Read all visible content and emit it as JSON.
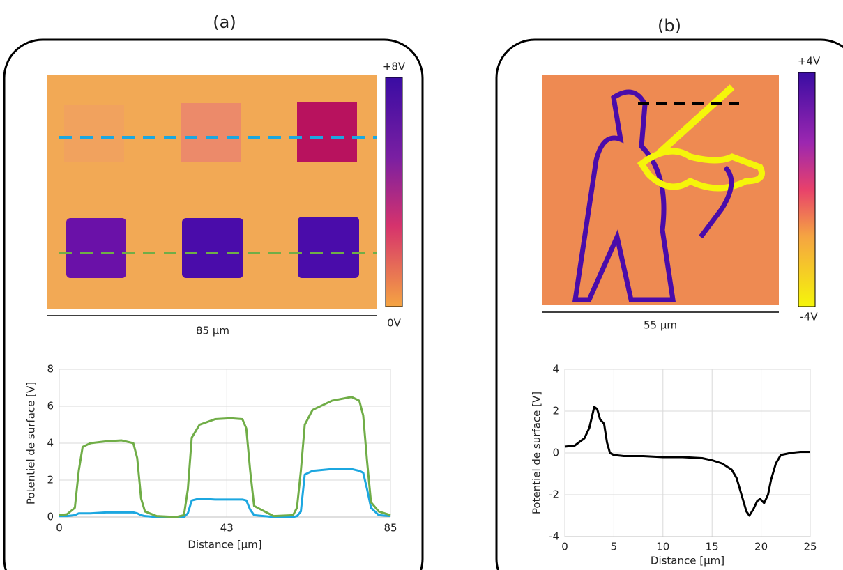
{
  "chart_data": [
    {
      "type": "line",
      "panel_label": "(a)",
      "colorbar_labels": [
        "+8V",
        "0V"
      ],
      "scale_bar": "85 µm",
      "ylabel": "Potentiel de surface [V]",
      "xlabel": "Distance [µm]",
      "xlim": [
        0,
        85
      ],
      "xticks": [
        0,
        43,
        85
      ],
      "ylim": [
        0,
        8
      ],
      "yticks": [
        0,
        2,
        4,
        6,
        8
      ],
      "grid": true,
      "x": [
        0,
        2,
        4,
        5,
        6,
        8,
        12,
        16,
        19,
        20,
        21,
        22,
        25,
        30,
        32,
        33,
        34,
        36,
        40,
        44,
        47,
        48,
        49,
        50,
        55,
        60,
        61,
        62,
        63,
        65,
        70,
        75,
        77,
        78,
        79,
        80,
        82,
        85
      ],
      "series": [
        {
          "color": "#1ca7e0",
          "values": [
            0.05,
            0.05,
            0.1,
            0.2,
            0.2,
            0.2,
            0.25,
            0.25,
            0.25,
            0.2,
            0.1,
            0.05,
            0,
            0,
            0,
            0.2,
            0.9,
            1.0,
            0.95,
            0.95,
            0.95,
            0.9,
            0.4,
            0.1,
            0,
            0,
            0.05,
            0.3,
            2.3,
            2.5,
            2.6,
            2.6,
            2.5,
            2.4,
            1.5,
            0.5,
            0.1,
            0.05
          ]
        },
        {
          "color": "#70ad47",
          "values": [
            0.1,
            0.15,
            0.5,
            2.5,
            3.8,
            4.0,
            4.1,
            4.15,
            4.0,
            3.2,
            1.0,
            0.3,
            0.05,
            0,
            0.1,
            1.5,
            4.3,
            5.0,
            5.3,
            5.35,
            5.3,
            4.8,
            2.5,
            0.6,
            0.05,
            0.1,
            0.5,
            2.5,
            5.0,
            5.8,
            6.3,
            6.5,
            6.3,
            5.5,
            3.0,
            0.8,
            0.3,
            0.1
          ]
        }
      ]
    },
    {
      "type": "line",
      "panel_label": "(b)",
      "colorbar_labels": [
        "+4V",
        "-4V"
      ],
      "scale_bar": "55 µm",
      "ylabel": "Potentiel de surface [V]",
      "xlabel": "Distance [µm]",
      "xlim": [
        0,
        25
      ],
      "xticks": [
        0,
        5,
        10,
        15,
        20,
        25
      ],
      "ylim": [
        -4,
        4
      ],
      "yticks": [
        -4,
        -2,
        0,
        2,
        4
      ],
      "grid": true,
      "x": [
        0,
        1,
        2,
        2.5,
        3,
        3.3,
        3.6,
        4,
        4.3,
        4.6,
        5,
        6,
        8,
        10,
        12,
        14,
        15,
        16,
        17,
        17.5,
        18,
        18.5,
        18.8,
        19.2,
        19.6,
        19.9,
        20.3,
        20.7,
        21,
        21.5,
        22,
        23,
        24,
        25
      ],
      "series": [
        {
          "color": "#000000",
          "values": [
            0.3,
            0.35,
            0.7,
            1.2,
            2.2,
            2.1,
            1.6,
            1.4,
            0.5,
            0,
            -0.1,
            -0.15,
            -0.15,
            -0.2,
            -0.2,
            -0.25,
            -0.35,
            -0.5,
            -0.8,
            -1.2,
            -2.0,
            -2.8,
            -3.0,
            -2.7,
            -2.3,
            -2.2,
            -2.4,
            -2.0,
            -1.3,
            -0.5,
            -0.1,
            0,
            0.05,
            0.05
          ]
        }
      ]
    }
  ]
}
